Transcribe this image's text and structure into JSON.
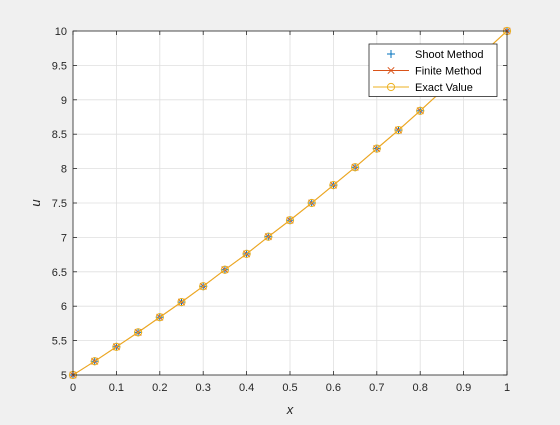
{
  "chart_data": {
    "type": "line",
    "xlabel": "x",
    "ylabel": "u",
    "xlim": [
      0,
      1
    ],
    "ylim": [
      5,
      10
    ],
    "grid": true,
    "legend_position": "top-right",
    "xticks": [
      "0",
      "0.1",
      "0.2",
      "0.3",
      "0.4",
      "0.5",
      "0.6",
      "0.7",
      "0.8",
      "0.9",
      "1"
    ],
    "yticks": [
      "5",
      "5.5",
      "6",
      "6.5",
      "7",
      "7.5",
      "8",
      "8.5",
      "9",
      "9.5",
      "10"
    ],
    "x": [
      0,
      0.05,
      0.1,
      0.15,
      0.2,
      0.25,
      0.3,
      0.35,
      0.4,
      0.45,
      0.5,
      0.55,
      0.6,
      0.65,
      0.7,
      0.75,
      0.8,
      1.0
    ],
    "series": [
      {
        "name": "Shoot Method",
        "marker": "+",
        "color": "#0072bd",
        "line": false,
        "values": [
          5.0,
          5.2,
          5.41,
          5.62,
          5.84,
          6.06,
          6.29,
          6.53,
          6.76,
          7.01,
          7.25,
          7.5,
          7.76,
          8.02,
          8.29,
          8.56,
          8.84,
          10.0
        ]
      },
      {
        "name": "Finite Method",
        "marker": "x",
        "color": "#d95319",
        "line": true,
        "values": [
          5.0,
          5.2,
          5.41,
          5.62,
          5.84,
          6.06,
          6.29,
          6.53,
          6.76,
          7.01,
          7.25,
          7.5,
          7.76,
          8.02,
          8.29,
          8.56,
          8.84,
          10.0
        ]
      },
      {
        "name": "Exact Value",
        "marker": "o",
        "color": "#edb120",
        "line": true,
        "values": [
          5.0,
          5.2,
          5.41,
          5.62,
          5.84,
          6.06,
          6.29,
          6.53,
          6.76,
          7.01,
          7.25,
          7.5,
          7.76,
          8.02,
          8.29,
          8.56,
          8.84,
          10.0
        ]
      }
    ]
  }
}
